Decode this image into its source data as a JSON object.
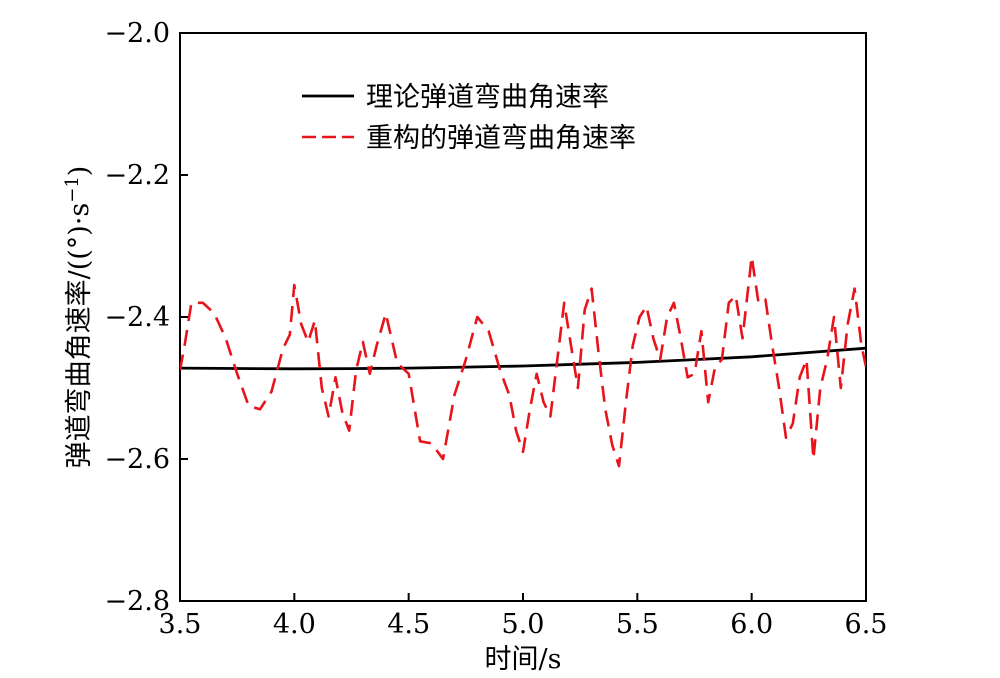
{
  "chart_data": {
    "type": "line",
    "title": "",
    "xlabel": "时间/s",
    "ylabel_main": "弹道弯曲角速率/((°)·s",
    "ylabel_sup": "−1",
    "ylabel_tail": ")",
    "xlim": [
      3.5,
      6.5
    ],
    "ylim": [
      -2.8,
      -2.0
    ],
    "xticks": [
      3.5,
      4.0,
      4.5,
      5.0,
      5.5,
      6.0,
      6.5
    ],
    "xtick_labels": [
      "3.5",
      "4.0",
      "4.5",
      "5.0",
      "5.5",
      "6.0",
      "6.5"
    ],
    "yticks": [
      -2.8,
      -2.6,
      -2.4,
      -2.2,
      -2.0
    ],
    "ytick_labels": [
      "−2.8",
      "−2.6",
      "−2.4",
      "−2.2",
      "−2.0"
    ],
    "grid": false,
    "legend_position": "top-center",
    "series": [
      {
        "name": "理论弹道弯曲角速率",
        "color": "#000000",
        "style": "solid",
        "x": [
          3.5,
          3.75,
          4.0,
          4.25,
          4.5,
          4.75,
          5.0,
          5.25,
          5.5,
          5.75,
          6.0,
          6.25,
          6.5
        ],
        "y": [
          -2.472,
          -2.4725,
          -2.473,
          -2.4727,
          -2.472,
          -2.4705,
          -2.469,
          -2.4665,
          -2.464,
          -2.46,
          -2.456,
          -2.45,
          -2.444
        ]
      },
      {
        "name": "重构的弹道弯曲角速率",
        "color": "#e8141b",
        "style": "dashed",
        "x": [
          3.5,
          3.52,
          3.55,
          3.6,
          3.65,
          3.7,
          3.75,
          3.8,
          3.85,
          3.9,
          3.95,
          3.98,
          4.0,
          4.03,
          4.06,
          4.09,
          4.12,
          4.15,
          4.18,
          4.21,
          4.24,
          4.27,
          4.3,
          4.33,
          4.36,
          4.4,
          4.45,
          4.5,
          4.55,
          4.6,
          4.65,
          4.7,
          4.75,
          4.8,
          4.85,
          4.9,
          4.94,
          4.97,
          5.0,
          5.03,
          5.06,
          5.09,
          5.12,
          5.15,
          5.18,
          5.21,
          5.24,
          5.27,
          5.3,
          5.33,
          5.36,
          5.39,
          5.42,
          5.45,
          5.48,
          5.51,
          5.54,
          5.57,
          5.6,
          5.63,
          5.66,
          5.69,
          5.72,
          5.75,
          5.78,
          5.81,
          5.84,
          5.87,
          5.9,
          5.93,
          5.96,
          6.0,
          6.03,
          6.06,
          6.09,
          6.12,
          6.15,
          6.18,
          6.21,
          6.24,
          6.27,
          6.3,
          6.33,
          6.36,
          6.39,
          6.42,
          6.45,
          6.48,
          6.5
        ],
        "y": [
          -2.475,
          -2.44,
          -2.38,
          -2.38,
          -2.395,
          -2.43,
          -2.48,
          -2.525,
          -2.53,
          -2.505,
          -2.445,
          -2.425,
          -2.355,
          -2.41,
          -2.435,
          -2.405,
          -2.5,
          -2.54,
          -2.485,
          -2.535,
          -2.56,
          -2.475,
          -2.435,
          -2.48,
          -2.44,
          -2.395,
          -2.465,
          -2.48,
          -2.575,
          -2.578,
          -2.6,
          -2.51,
          -2.46,
          -2.4,
          -2.42,
          -2.475,
          -2.51,
          -2.56,
          -2.59,
          -2.53,
          -2.48,
          -2.52,
          -2.54,
          -2.46,
          -2.38,
          -2.44,
          -2.5,
          -2.39,
          -2.36,
          -2.45,
          -2.53,
          -2.58,
          -2.61,
          -2.52,
          -2.44,
          -2.4,
          -2.385,
          -2.43,
          -2.46,
          -2.4,
          -2.38,
          -2.43,
          -2.485,
          -2.48,
          -2.42,
          -2.52,
          -2.47,
          -2.46,
          -2.38,
          -2.37,
          -2.43,
          -2.315,
          -2.38,
          -2.375,
          -2.44,
          -2.5,
          -2.57,
          -2.55,
          -2.485,
          -2.46,
          -2.6,
          -2.5,
          -2.46,
          -2.4,
          -2.5,
          -2.41,
          -2.36,
          -2.44,
          -2.47
        ]
      }
    ]
  }
}
